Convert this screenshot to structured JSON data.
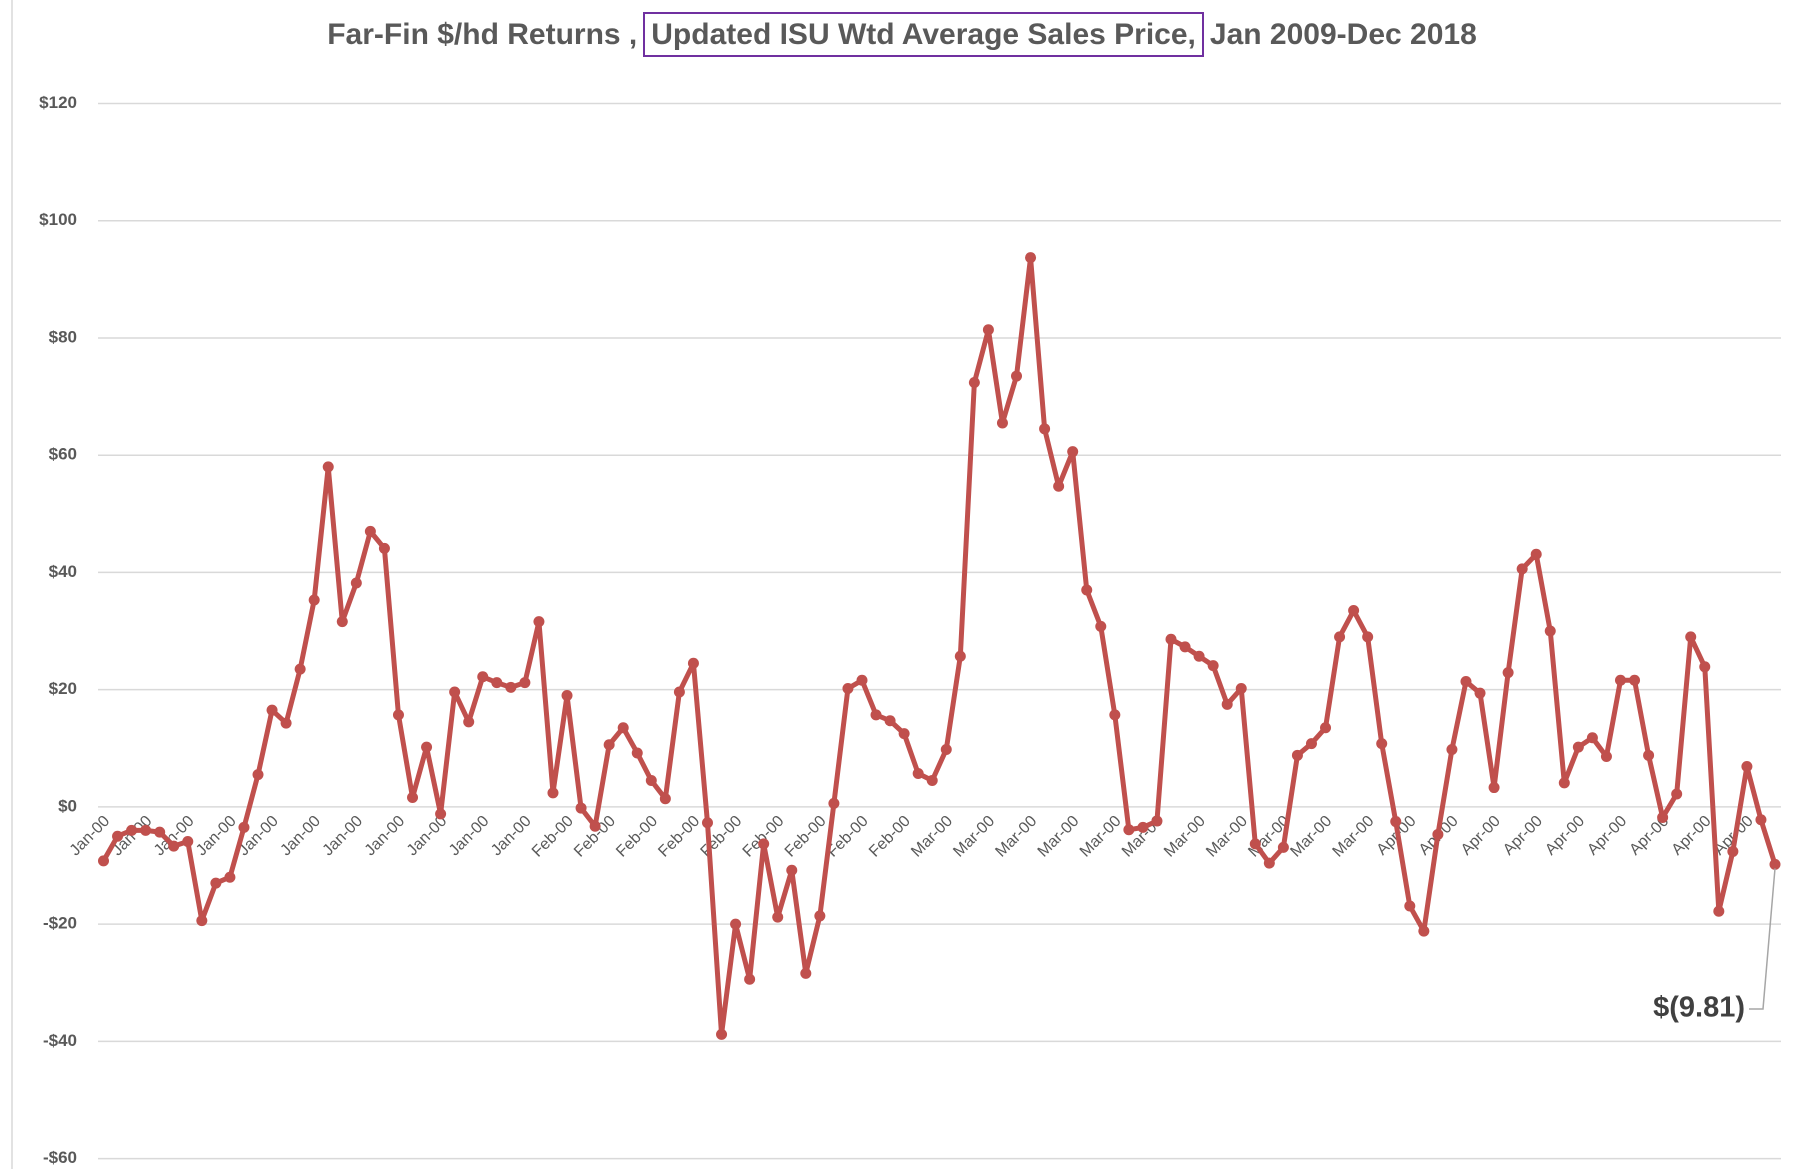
{
  "chart_data": {
    "type": "line",
    "title": [
      "Far-Fin $/hd Returns ,",
      "Updated ISU Wtd Average Sales Price,",
      "Jan 2009-Dec 2018"
    ],
    "categories": [
      "Jan-00",
      null,
      null,
      "Jan-00",
      null,
      null,
      "Jan-00",
      null,
      null,
      "Jan-00",
      null,
      null,
      "Jan-00",
      null,
      null,
      "Jan-00",
      null,
      null,
      "Jan-00",
      null,
      null,
      "Jan-00",
      null,
      null,
      "Jan-00",
      null,
      null,
      "Jan-00",
      null,
      null,
      "Jan-00",
      null,
      null,
      "Feb-00",
      null,
      null,
      "Feb-00",
      null,
      null,
      "Feb-00",
      null,
      null,
      "Feb-00",
      null,
      null,
      "Feb-00",
      null,
      null,
      "Feb-00",
      null,
      null,
      "Feb-00",
      null,
      null,
      "Feb-00",
      null,
      null,
      "Feb-00",
      null,
      null,
      "Mar-00",
      null,
      null,
      "Mar-00",
      null,
      null,
      "Mar-00",
      null,
      null,
      "Mar-00",
      null,
      null,
      "Mar-00",
      null,
      null,
      "Mar-00",
      null,
      null,
      "Mar-00",
      null,
      null,
      "Mar-00",
      null,
      null,
      "Mar-00",
      null,
      null,
      "Mar-00",
      null,
      null,
      "Mar-00",
      null,
      null,
      "Apr-00",
      null,
      null,
      "Apr-00",
      null,
      null,
      "Apr-00",
      null,
      null,
      "Apr-00",
      null,
      null,
      "Apr-00",
      null,
      null,
      "Apr-00",
      null,
      null,
      "Apr-00",
      null,
      null,
      "Apr-00",
      null,
      null,
      "Apr-00",
      null,
      null
    ],
    "values": [
      -9.2,
      -5,
      -4,
      -4,
      -4.3,
      -6.7,
      -5.9,
      -19.4,
      -13,
      -12,
      -3.5,
      5.5,
      16.5,
      14.3,
      23.5,
      35.3,
      58,
      31.6,
      38.2,
      47,
      44.1,
      15.7,
      1.6,
      10.2,
      -1.2,
      19.6,
      14.5,
      22.2,
      21.2,
      20.4,
      21.2,
      31.6,
      2.4,
      19,
      -0.2,
      -3.3,
      10.6,
      13.5,
      9.2,
      4.5,
      1.4,
      19.6,
      24.5,
      -2.7,
      -38.8,
      -20,
      -29.4,
      -6.3,
      -18.8,
      -10.8,
      -28.4,
      -18.6,
      0.6,
      20.2,
      21.6,
      15.7,
      14.7,
      12.5,
      5.7,
      4.5,
      9.8,
      25.7,
      72.4,
      81.4,
      65.5,
      73.5,
      93.7,
      64.5,
      54.7,
      60.6,
      37,
      30.8,
      15.7,
      -3.9,
      -3.5,
      -2.4,
      28.6,
      27.3,
      25.7,
      24.1,
      17.5,
      20.2,
      -6.3,
      -9.6,
      -6.9,
      8.8,
      10.8,
      13.5,
      29,
      33.5,
      29,
      10.8,
      -2.5,
      -16.9,
      -21.2,
      -4.7,
      9.8,
      21.4,
      19.4,
      3.3,
      22.9,
      40.6,
      43.1,
      30,
      4.1,
      10.2,
      11.8,
      8.6,
      21.6,
      21.6,
      8.8,
      -1.8,
      2.2,
      29,
      23.9,
      -17.8,
      -7.6,
      6.9,
      -2.2,
      -9.81
    ],
    "value_labels": [
      null,
      null,
      null,
      null,
      null,
      null,
      null,
      null,
      null,
      null,
      null,
      null,
      null,
      null,
      null,
      null,
      null,
      null,
      null,
      null,
      null,
      null,
      null,
      null,
      null,
      null,
      null,
      null,
      null,
      null,
      null,
      null,
      null,
      null,
      null,
      null,
      null,
      null,
      null,
      null,
      null,
      null,
      null,
      null,
      null,
      null,
      null,
      null,
      null,
      null,
      null,
      null,
      null,
      null,
      null,
      null,
      null,
      null,
      null,
      null,
      null,
      null,
      null,
      null,
      null,
      null,
      null,
      null,
      null,
      null,
      null,
      null,
      null,
      null,
      null,
      null,
      null,
      null,
      null,
      null,
      null,
      null,
      null,
      null,
      null,
      null,
      null,
      null,
      null,
      null,
      null,
      null,
      null,
      null,
      null,
      null,
      null,
      null,
      null,
      null,
      null,
      null,
      null,
      null,
      null,
      null,
      null,
      null,
      null,
      null,
      null,
      null,
      null,
      null,
      null,
      null,
      null,
      null,
      null,
      "$(9.81)"
    ],
    "color": "#c0504d",
    "ylim": [
      -60,
      120
    ],
    "yticks": [
      {
        "value": -60,
        "label": "-$60"
      },
      {
        "value": -40,
        "label": "-$40"
      },
      {
        "value": -20,
        "label": "-$20"
      },
      {
        "value": 0,
        "label": "$0"
      },
      {
        "value": 20,
        "label": "$20"
      },
      {
        "value": 40,
        "label": "$40"
      },
      {
        "value": 60,
        "label": "$60"
      },
      {
        "value": 80,
        "label": "$80"
      },
      {
        "value": 100,
        "label": "$100"
      },
      {
        "value": 120,
        "label": "$120"
      }
    ],
    "grid": true
  }
}
